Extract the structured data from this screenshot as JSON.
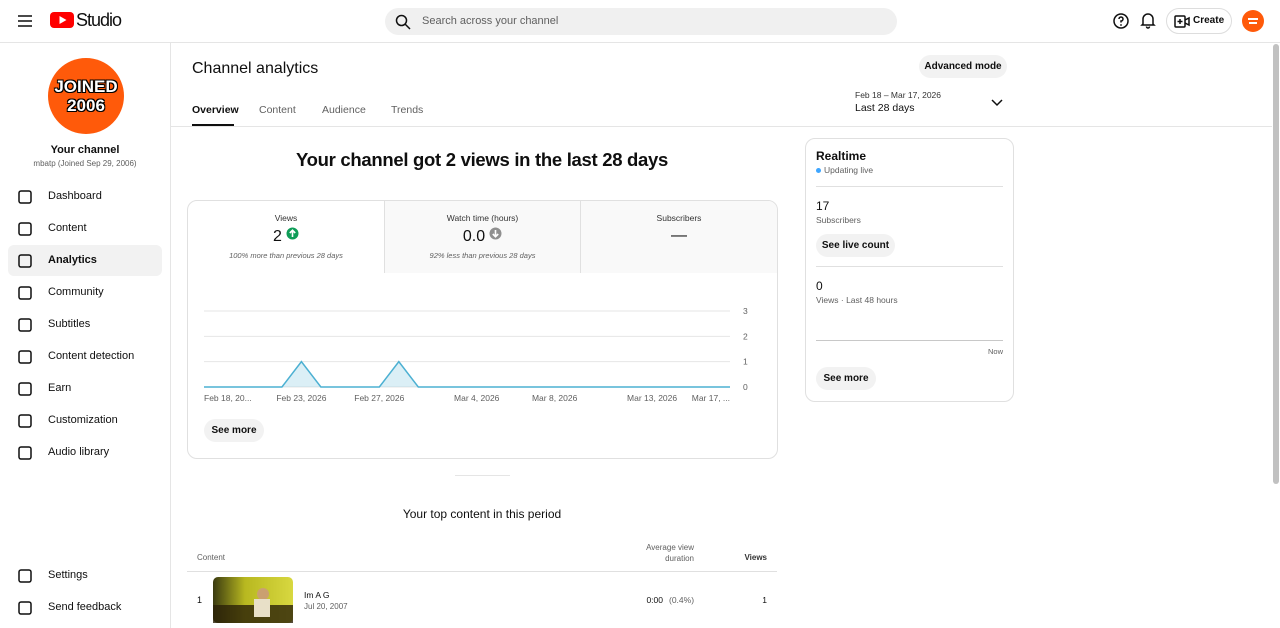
{
  "header": {
    "logo": "Studio",
    "search_placeholder": "Search across your channel",
    "create": "Create"
  },
  "sidebar": {
    "avatar_lines": [
      "JOINED",
      "2006"
    ],
    "channel_title": "Your channel",
    "channel_subtitle": "mbatp (Joined Sep 29, 2006)",
    "nav": [
      "Dashboard",
      "Content",
      "Analytics",
      "Community",
      "Subtitles",
      "Content detection",
      "Earn",
      "Customization",
      "Audio library"
    ],
    "footer_nav": [
      "Settings",
      "Send feedback"
    ]
  },
  "page": {
    "title": "Channel analytics",
    "advanced_mode": "Advanced mode",
    "tabs": [
      "Overview",
      "Content",
      "Audience",
      "Trends"
    ],
    "date_range": "Feb 18 – Mar 17, 2026",
    "date_label": "Last 28 days"
  },
  "summary": {
    "headline": "Your channel got 2 views in the last 28 days",
    "metrics": [
      {
        "label": "Views",
        "value": "2",
        "note": "100% more than previous 28 days"
      },
      {
        "label": "Watch time (hours)",
        "value": "0.0",
        "note": "92% less than previous 28 days"
      },
      {
        "label": "Subscribers",
        "value": "—"
      }
    ],
    "see_more": "See more"
  },
  "chart_data": {
    "type": "line",
    "categories": [
      "Feb 18, 20...",
      null,
      null,
      null,
      null,
      "Feb 23, 2026",
      null,
      null,
      null,
      "Feb 27, 2026",
      null,
      null,
      null,
      null,
      "Mar 4, 2026",
      null,
      null,
      null,
      "Mar 8, 2026",
      null,
      null,
      null,
      null,
      "Mar 13, 2026",
      null,
      null,
      null,
      "Mar 17, ..."
    ],
    "values": [
      0,
      0,
      0,
      0,
      0,
      1,
      0,
      0,
      0,
      0,
      1,
      0,
      0,
      0,
      0,
      0,
      0,
      0,
      0,
      0,
      0,
      0,
      0,
      0,
      0,
      0,
      0,
      0
    ],
    "color": "#4cb0d2",
    "ylim": [
      0,
      3
    ],
    "yticks": [
      0,
      1,
      2,
      3
    ],
    "grid": true
  },
  "top_content": {
    "title": "Your top content in this period",
    "columns": [
      "Content",
      "Average view duration",
      "Views"
    ],
    "rows": [
      {
        "rank": "1",
        "title": "Im A G",
        "date": "Jul 20, 2007",
        "duration": "0:00",
        "share": "(0.4%)",
        "views": "1"
      }
    ]
  },
  "realtime": {
    "title": "Realtime",
    "status": "Updating live",
    "subscribers": "17",
    "subscribers_label": "Subscribers",
    "see_live_count": "See live count",
    "views": "0",
    "views_label": "Views · Last 48 hours",
    "now": "Now",
    "see_more": "See more"
  }
}
